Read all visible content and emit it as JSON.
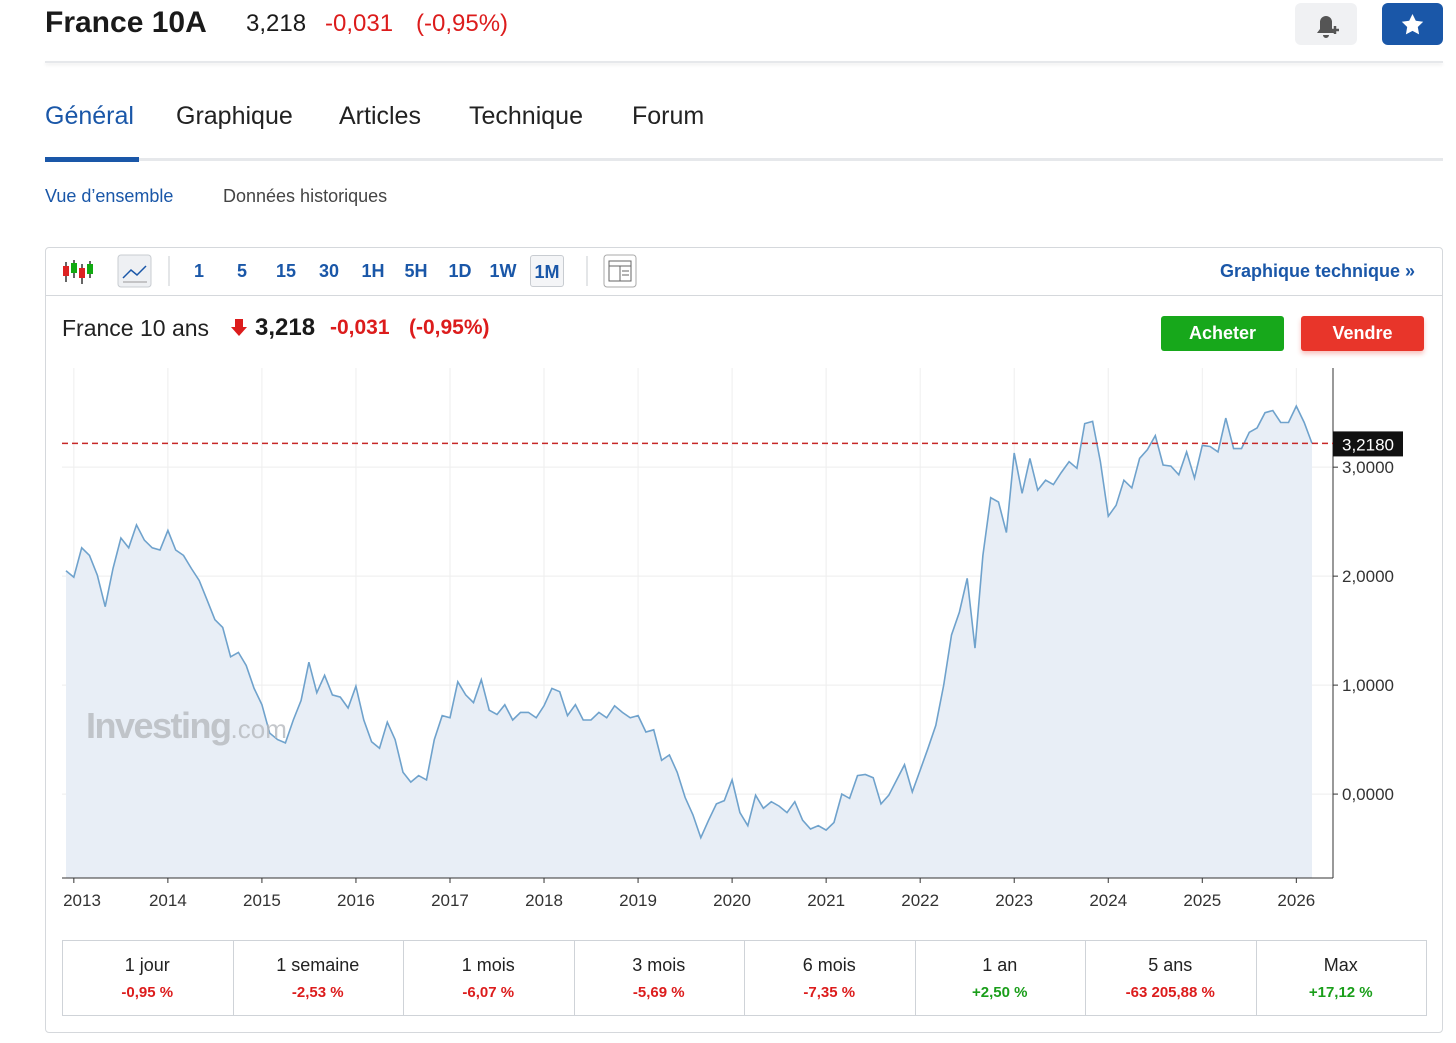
{
  "header": {
    "title": "France 10A",
    "price": "3,218",
    "change": "-0,031",
    "change_pct": "(-0,95%)"
  },
  "tabs": [
    "Général",
    "Graphique",
    "Articles",
    "Technique",
    "Forum"
  ],
  "subtabs": [
    "Vue d’ensemble",
    "Données historiques"
  ],
  "toolbar": {
    "intervals": [
      "1",
      "5",
      "15",
      "30",
      "1H",
      "5H",
      "1D",
      "1W",
      "1M"
    ],
    "active": "1M",
    "link": "Graphique technique »"
  },
  "quote": {
    "name": "France 10 ans",
    "price": "3,218",
    "change": "-0,031",
    "change_pct": "(-0,95%)"
  },
  "buttons": [
    "Acheter",
    "Vendre"
  ],
  "watermark": {
    "brand": "Investing",
    "suffix": ".com"
  },
  "chart_data": {
    "type": "line",
    "color": "#6fa2cc",
    "fill": "#e8eef6",
    "grid": true,
    "categories": [
      null,
      "2013",
      null,
      null,
      null,
      null,
      null,
      null,
      null,
      null,
      null,
      null,
      null,
      "2014",
      null,
      null,
      null,
      null,
      null,
      null,
      null,
      null,
      null,
      null,
      null,
      "2015",
      null,
      null,
      null,
      null,
      null,
      null,
      null,
      null,
      null,
      null,
      null,
      "2016",
      null,
      null,
      null,
      null,
      null,
      null,
      null,
      null,
      null,
      null,
      null,
      "2017",
      null,
      null,
      null,
      null,
      null,
      null,
      null,
      null,
      null,
      null,
      null,
      "2018",
      null,
      null,
      null,
      null,
      null,
      null,
      null,
      null,
      null,
      null,
      null,
      "2019",
      null,
      null,
      null,
      null,
      null,
      null,
      null,
      null,
      null,
      null,
      null,
      "2020",
      null,
      null,
      null,
      null,
      null,
      null,
      null,
      null,
      null,
      null,
      null,
      "2021",
      null,
      null,
      null,
      null,
      null,
      null,
      null,
      null,
      null,
      null,
      null,
      "2022",
      null,
      null,
      null,
      null,
      null,
      null,
      null,
      null,
      null,
      null,
      null,
      "2023",
      null,
      null,
      null,
      null,
      null,
      null,
      null,
      null,
      null,
      null,
      null,
      "2024",
      null,
      null,
      null,
      null,
      null,
      null,
      null,
      null,
      null,
      null,
      null,
      "2025",
      null,
      null,
      null,
      null,
      null,
      null,
      null,
      null,
      null,
      null,
      null,
      "2026",
      null,
      null
    ],
    "values": [
      2.05,
      1.99,
      2.26,
      2.19,
      2.01,
      1.72,
      2.07,
      2.35,
      2.26,
      2.47,
      2.33,
      2.26,
      2.24,
      2.42,
      2.24,
      2.19,
      2.07,
      1.96,
      1.78,
      1.6,
      1.53,
      1.26,
      1.3,
      1.18,
      0.97,
      0.82,
      0.56,
      0.5,
      0.47,
      0.68,
      0.86,
      1.21,
      0.93,
      1.09,
      0.91,
      0.89,
      0.79,
      0.99,
      0.68,
      0.48,
      0.42,
      0.66,
      0.5,
      0.2,
      0.11,
      0.17,
      0.13,
      0.5,
      0.72,
      0.7,
      1.03,
      0.91,
      0.84,
      1.05,
      0.77,
      0.73,
      0.82,
      0.68,
      0.75,
      0.75,
      0.7,
      0.81,
      0.97,
      0.94,
      0.72,
      0.82,
      0.68,
      0.68,
      0.75,
      0.7,
      0.81,
      0.75,
      0.7,
      0.72,
      0.57,
      0.59,
      0.31,
      0.36,
      0.2,
      -0.03,
      -0.19,
      -0.4,
      -0.24,
      -0.09,
      -0.06,
      0.13,
      -0.17,
      -0.29,
      -0.01,
      -0.13,
      -0.07,
      -0.11,
      -0.17,
      -0.07,
      -0.24,
      -0.32,
      -0.29,
      -0.33,
      -0.26,
      0.0,
      -0.04,
      0.17,
      0.18,
      0.15,
      -0.09,
      -0.01,
      0.13,
      0.27,
      0.02,
      0.22,
      0.42,
      0.63,
      1.0,
      1.46,
      1.67,
      1.98,
      1.34,
      2.19,
      2.72,
      2.68,
      2.4,
      3.13,
      2.76,
      3.08,
      2.79,
      2.88,
      2.84,
      2.95,
      3.05,
      2.99,
      3.4,
      3.42,
      3.05,
      2.55,
      2.65,
      2.88,
      2.81,
      3.08,
      3.16,
      3.29,
      3.02,
      3.01,
      2.93,
      3.14,
      2.9,
      3.2,
      3.19,
      3.14,
      3.45,
      3.17,
      3.17,
      3.32,
      3.36,
      3.5,
      3.52,
      3.41,
      3.41,
      3.56,
      3.41,
      3.218
    ],
    "ylim": [
      -0.77,
      3.91
    ],
    "yticks": [
      {
        "value": 0,
        "label": "0,0000"
      },
      {
        "value": 1,
        "label": "1,0000"
      },
      {
        "value": 2,
        "label": "2,0000"
      },
      {
        "value": 3,
        "label": "3,0000"
      }
    ],
    "price_line": {
      "value": 3.218,
      "label": "3,2180",
      "color": "#c62828"
    }
  },
  "performance": [
    {
      "period": "1 jour",
      "change": "-0,95 %"
    },
    {
      "period": "1 semaine",
      "change": "-2,53 %"
    },
    {
      "period": "1 mois",
      "change": "-6,07 %"
    },
    {
      "period": "3 mois",
      "change": "-5,69 %"
    },
    {
      "period": "6 mois",
      "change": "-7,35 %"
    },
    {
      "period": "1 an",
      "change": "+2,50 %"
    },
    {
      "period": "5 ans",
      "change": "-63 205,88 %"
    },
    {
      "period": "Max",
      "change": "+17,12 %"
    }
  ]
}
